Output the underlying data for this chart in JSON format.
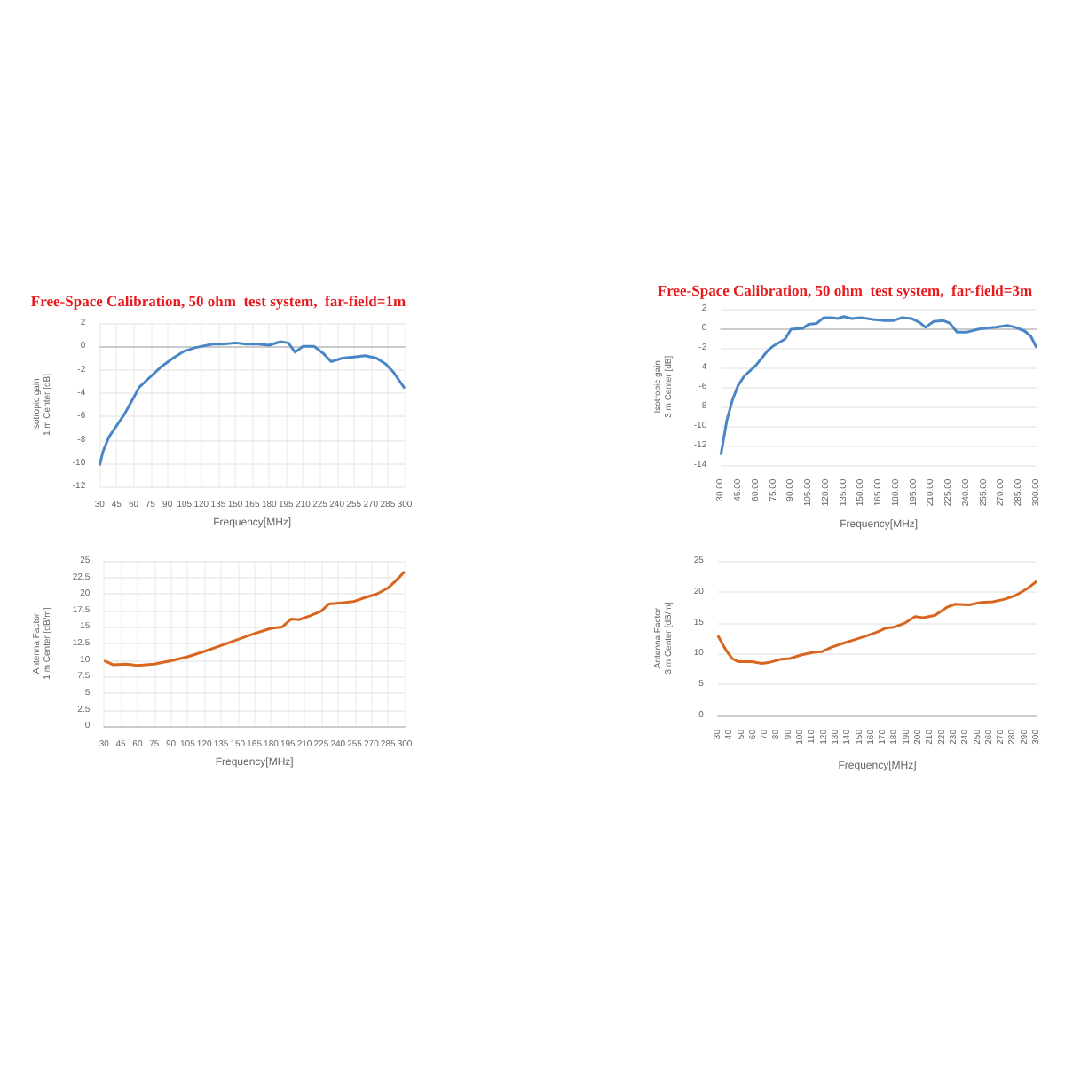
{
  "chart_data": [
    {
      "type": "line",
      "title": "Free-Space Calibration, 50 ohm  test system,  far-field=1m",
      "xlabel": "Frequency[MHz]",
      "ylabel": "Isotropic gain\n1 m Center [dB]",
      "marker": "none",
      "grid": true,
      "x": [
        30,
        33,
        38,
        45,
        52,
        60,
        65,
        75,
        85,
        95,
        105,
        115,
        130,
        140,
        150,
        160,
        170,
        180,
        190,
        197,
        203,
        210,
        220,
        228,
        235,
        245,
        255,
        265,
        275,
        283,
        290,
        300
      ],
      "series": [
        {
          "color": "#4a86c5",
          "values": [
            -10.2,
            -9,
            -7.8,
            -6.8,
            -5.8,
            -4.4,
            -3.5,
            -2.6,
            -1.7,
            -1.0,
            -0.4,
            -0.1,
            0.2,
            0.2,
            0.3,
            0.2,
            0.2,
            0.1,
            0.4,
            0.3,
            -0.5,
            0.0,
            0.0,
            -0.6,
            -1.3,
            -1.0,
            -0.9,
            -0.8,
            -1.0,
            -1.5,
            -2.2,
            -3.6
          ]
        }
      ],
      "xlim": [
        30,
        300
      ],
      "xticks": [
        30,
        45,
        60,
        75,
        90,
        105,
        120,
        135,
        150,
        165,
        180,
        195,
        210,
        225,
        240,
        255,
        270,
        285,
        300
      ],
      "ylim": [
        -12,
        2
      ],
      "yticks": [
        -12,
        -10,
        -8,
        -6,
        -4,
        -2,
        0,
        2
      ]
    },
    {
      "type": "line",
      "title": "Free-Space Calibration, 50 ohm  test system,  far-field=3m",
      "xlabel": "Frequency[MHz]",
      "ylabel": "Isotropic gain\n3 m Center [dB]",
      "marker": "none",
      "grid": "y",
      "x": [
        30,
        35,
        40,
        45,
        50,
        60,
        70,
        75,
        85,
        90,
        100,
        105,
        112,
        118,
        125,
        130,
        135,
        142,
        150,
        160,
        170,
        178,
        185,
        193,
        200,
        205,
        212,
        220,
        226,
        232,
        240,
        250,
        255,
        265,
        275,
        282,
        290,
        295,
        300
      ],
      "series": [
        {
          "color": "#4a86c5",
          "values": [
            -13,
            -9.5,
            -7.3,
            -5.8,
            -4.9,
            -3.8,
            -2.3,
            -1.8,
            -1.1,
            -0.1,
            0.0,
            0.4,
            0.5,
            1.1,
            1.1,
            1.0,
            1.2,
            1.0,
            1.1,
            0.9,
            0.8,
            0.8,
            1.1,
            1.0,
            0.6,
            0.1,
            0.7,
            0.8,
            0.5,
            -0.4,
            -0.4,
            -0.1,
            0.0,
            0.1,
            0.3,
            0.1,
            -0.3,
            -0.8,
            -2.0
          ]
        }
      ],
      "xlim": [
        30,
        300
      ],
      "xticks": [
        {
          "value": 30,
          "label": "30.00"
        },
        {
          "value": 45,
          "label": "45.00"
        },
        {
          "value": 60,
          "label": "60.00"
        },
        {
          "value": 75,
          "label": "75.00"
        },
        {
          "value": 90,
          "label": "90.00"
        },
        {
          "value": 105,
          "label": "105.00"
        },
        {
          "value": 120,
          "label": "120.00"
        },
        {
          "value": 135,
          "label": "135.00"
        },
        {
          "value": 150,
          "label": "150.00"
        },
        {
          "value": 165,
          "label": "165.00"
        },
        {
          "value": 180,
          "label": "180.00"
        },
        {
          "value": 195,
          "label": "195.00"
        },
        {
          "value": 210,
          "label": "210.00"
        },
        {
          "value": 225,
          "label": "225.00"
        },
        {
          "value": 240,
          "label": "240.00"
        },
        {
          "value": 255,
          "label": "255.00"
        },
        {
          "value": 270,
          "label": "270.00"
        },
        {
          "value": 285,
          "label": "285.00"
        },
        {
          "value": 300,
          "label": "300.00"
        }
      ],
      "ylim": [
        -14,
        2
      ],
      "yticks": [
        -14,
        -12,
        -10,
        -8,
        -6,
        -4,
        -2,
        0,
        2
      ]
    },
    {
      "type": "line",
      "xlabel": "Frequency[MHz]",
      "ylabel": "Antenna Factor\n1 m Center [dB/m]",
      "marker": "none",
      "grid": true,
      "x": [
        30,
        38,
        50,
        60,
        75,
        90,
        105,
        120,
        135,
        150,
        165,
        180,
        190,
        198,
        205,
        215,
        225,
        232,
        245,
        255,
        265,
        275,
        285,
        292,
        300
      ],
      "series": [
        {
          "color": "#d9661f",
          "values": [
            9.9,
            9.3,
            9.4,
            9.2,
            9.4,
            9.9,
            10.5,
            11.3,
            12.2,
            13.1,
            14.0,
            14.8,
            15.0,
            16.2,
            16.1,
            16.7,
            17.4,
            18.5,
            18.7,
            18.9,
            19.5,
            20.0,
            20.9,
            22.0,
            23.4
          ]
        }
      ],
      "xlim": [
        30,
        300
      ],
      "xticks": [
        30,
        45,
        60,
        75,
        90,
        105,
        120,
        135,
        150,
        165,
        180,
        195,
        210,
        225,
        240,
        255,
        270,
        285,
        300
      ],
      "ylim": [
        0,
        25
      ],
      "yticks": [
        0,
        2.5,
        5,
        7.5,
        10,
        12.5,
        15,
        17.5,
        20,
        22.5,
        25
      ]
    },
    {
      "type": "line",
      "xlabel": "Frequency[MHz]",
      "ylabel": "Antenna Factor\n3 m Center [dB/m]",
      "marker": "none",
      "grid": "y",
      "x": [
        30,
        37,
        42,
        47,
        59,
        67,
        74,
        84,
        91,
        101,
        111,
        118,
        126,
        135,
        145,
        155,
        165,
        172,
        180,
        189,
        197,
        204,
        214,
        224,
        231,
        243,
        253,
        263,
        273,
        282,
        292,
        300
      ],
      "series": [
        {
          "color": "#d9661f",
          "values": [
            12.9,
            10.5,
            9.2,
            8.7,
            8.7,
            8.4,
            8.6,
            9.1,
            9.2,
            9.8,
            10.2,
            10.3,
            11.0,
            11.6,
            12.2,
            12.8,
            13.5,
            14.1,
            14.3,
            15.0,
            16.0,
            15.8,
            16.2,
            17.5,
            18.0,
            17.9,
            18.3,
            18.4,
            18.8,
            19.4,
            20.5,
            21.7
          ]
        }
      ],
      "xlim": [
        30,
        300
      ],
      "xticks": [
        30,
        40,
        50,
        60,
        70,
        80,
        90,
        100,
        110,
        120,
        130,
        140,
        150,
        160,
        170,
        180,
        190,
        200,
        210,
        220,
        230,
        240,
        250,
        260,
        270,
        280,
        290,
        300
      ],
      "ylim": [
        0,
        25
      ],
      "yticks": [
        0,
        5,
        10,
        15,
        20,
        25
      ]
    }
  ]
}
